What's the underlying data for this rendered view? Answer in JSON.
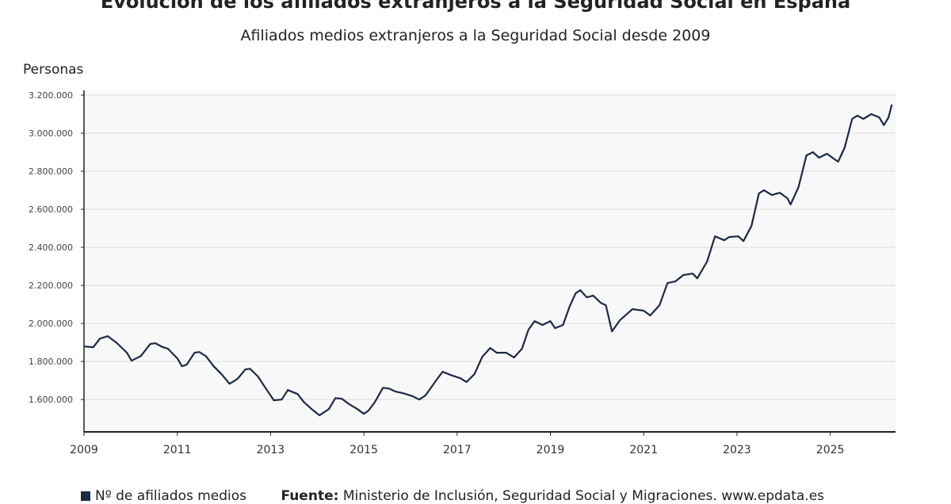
{
  "chart_data": {
    "type": "line",
    "title": "Evolución de los afiliados extranjeros a la Seguridad Social en España",
    "subtitle": "Afiliados medios extranjeros a la Seguridad Social desde 2009",
    "ylabel": "Personas",
    "xlabel": "",
    "xlim": [
      2009,
      2026.4
    ],
    "ylim": [
      1430000,
      3200000
    ],
    "x_ticks": [
      "2009",
      "2011",
      "2013",
      "2015",
      "2017",
      "2019",
      "2021",
      "2023",
      "2025"
    ],
    "y_ticks": [
      "1.600.000",
      "1.800.000",
      "2.000.000",
      "2.200.000",
      "2.400.000",
      "2.600.000",
      "2.800.000",
      "3.000.000",
      "3.200.000"
    ],
    "y_tick_values": [
      1600000,
      1800000,
      2000000,
      2200000,
      2400000,
      2600000,
      2800000,
      3000000,
      3200000
    ],
    "grid": "horizontal",
    "legend_placement": "bottom-left",
    "series": [
      {
        "name": "Nº de afiliados medios",
        "color": "#1b2a45",
        "x": [
          2009.0,
          2009.2,
          2009.34,
          2009.51,
          2009.71,
          2009.92,
          2010.02,
          2010.22,
          2010.42,
          2010.53,
          2010.69,
          2010.8,
          2011.0,
          2011.1,
          2011.2,
          2011.37,
          2011.47,
          2011.61,
          2011.78,
          2011.95,
          2012.12,
          2012.29,
          2012.46,
          2012.56,
          2012.73,
          2012.9,
          2013.07,
          2013.24,
          2013.37,
          2013.58,
          2013.71,
          2013.88,
          2014.05,
          2014.25,
          2014.39,
          2014.53,
          2014.69,
          2014.86,
          2015.0,
          2015.1,
          2015.24,
          2015.41,
          2015.54,
          2015.68,
          2015.85,
          2016.05,
          2016.19,
          2016.32,
          2016.56,
          2016.69,
          2016.86,
          2017.07,
          2017.2,
          2017.37,
          2017.54,
          2017.71,
          2017.85,
          2018.05,
          2018.22,
          2018.39,
          2018.53,
          2018.66,
          2018.83,
          2019.0,
          2019.1,
          2019.27,
          2019.41,
          2019.54,
          2019.64,
          2019.78,
          2019.92,
          2020.08,
          2020.19,
          2020.32,
          2020.49,
          2020.76,
          2021.0,
          2021.14,
          2021.34,
          2021.51,
          2021.68,
          2021.85,
          2022.05,
          2022.15,
          2022.36,
          2022.53,
          2022.73,
          2022.83,
          2023.03,
          2023.14,
          2023.31,
          2023.47,
          2023.58,
          2023.75,
          2023.92,
          2024.08,
          2024.15,
          2024.32,
          2024.49,
          2024.63,
          2024.76,
          2024.93,
          2025.07,
          2025.17,
          2025.31,
          2025.47,
          2025.58,
          2025.71,
          2025.88,
          2026.05,
          2026.15,
          2026.25,
          2026.32
        ],
        "values": [
          1879000,
          1875000,
          1920000,
          1933000,
          1896000,
          1846000,
          1804000,
          1829000,
          1892000,
          1896000,
          1875000,
          1867000,
          1817000,
          1775000,
          1783000,
          1846000,
          1850000,
          1829000,
          1775000,
          1733000,
          1683000,
          1708000,
          1758000,
          1762000,
          1721000,
          1658000,
          1596000,
          1600000,
          1650000,
          1629000,
          1588000,
          1550000,
          1517000,
          1550000,
          1608000,
          1604000,
          1575000,
          1550000,
          1525000,
          1542000,
          1588000,
          1662000,
          1658000,
          1642000,
          1633000,
          1617000,
          1600000,
          1621000,
          1704000,
          1746000,
          1729000,
          1712000,
          1692000,
          1733000,
          1825000,
          1871000,
          1846000,
          1846000,
          1821000,
          1867000,
          1967000,
          2012000,
          1992000,
          2012000,
          1975000,
          1992000,
          2087000,
          2158000,
          2175000,
          2137000,
          2146000,
          2108000,
          2096000,
          1958000,
          2017000,
          2075000,
          2067000,
          2042000,
          2096000,
          2212000,
          2221000,
          2254000,
          2262000,
          2237000,
          2325000,
          2458000,
          2437000,
          2454000,
          2458000,
          2433000,
          2512000,
          2683000,
          2700000,
          2675000,
          2687000,
          2658000,
          2625000,
          2717000,
          2883000,
          2900000,
          2871000,
          2892000,
          2867000,
          2850000,
          2925000,
          3075000,
          3092000,
          3075000,
          3100000,
          3083000,
          3042000,
          3083000,
          3150000
        ]
      }
    ],
    "source_label": "Fuente:",
    "source_text": "Ministerio de Inclusión, Seguridad Social y Migraciones. www.epdata.es"
  }
}
